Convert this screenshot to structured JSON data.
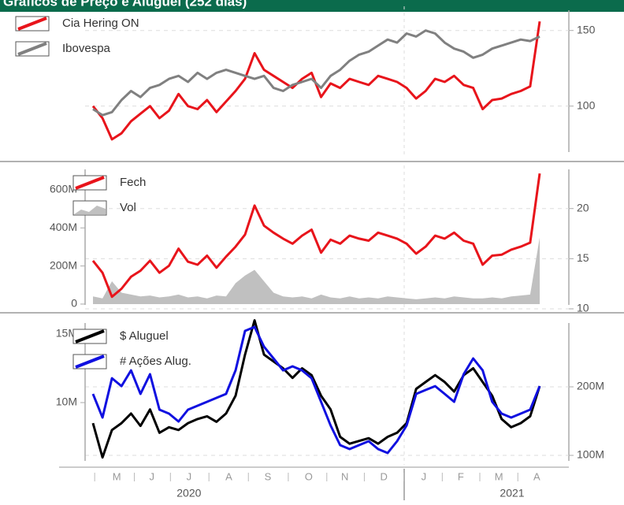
{
  "title": "Gráficos de Preço e Aluguel (252 dias)",
  "chart_data": [
    {
      "type": "line",
      "legend": "top-left",
      "x": [
        0,
        1,
        2,
        3,
        4,
        5,
        6,
        7,
        8,
        9,
        10,
        11,
        12,
        13,
        14,
        15,
        16,
        17,
        18,
        19,
        20,
        21,
        22,
        23,
        24,
        25,
        26,
        27,
        28,
        29,
        30,
        31,
        32,
        33,
        34,
        35,
        36,
        37,
        38,
        39,
        40,
        41,
        42,
        43,
        44,
        45,
        46,
        47
      ],
      "xlim": [
        0,
        47
      ],
      "ylim": [
        67,
        166
      ],
      "yticks": [
        100,
        150
      ],
      "grid": true,
      "series": [
        {
          "name": "Cia Hering ON",
          "color": "#e8141b",
          "axis": "y",
          "values": [
            100,
            92,
            78,
            82,
            90,
            95,
            100,
            92,
            97,
            108,
            100,
            98,
            104,
            96,
            103,
            110,
            118,
            135,
            124,
            120,
            116,
            112,
            118,
            122,
            106,
            115,
            112,
            118,
            116,
            114,
            120,
            118,
            116,
            112,
            105,
            110,
            118,
            116,
            120,
            114,
            112,
            98,
            104,
            105,
            108,
            110,
            113,
            156
          ]
        },
        {
          "name": "Ibovespa",
          "color": "#808080",
          "axis": "y",
          "values": [
            98,
            94,
            96,
            104,
            110,
            106,
            112,
            114,
            118,
            120,
            116,
            122,
            118,
            122,
            124,
            122,
            120,
            118,
            120,
            112,
            110,
            114,
            116,
            118,
            112,
            120,
            124,
            130,
            134,
            136,
            140,
            144,
            142,
            148,
            146,
            150,
            148,
            142,
            138,
            136,
            132,
            134,
            138,
            140,
            142,
            144,
            143,
            146
          ]
        }
      ]
    },
    {
      "type": "line",
      "legend": "top-left",
      "x": [
        0,
        1,
        2,
        3,
        4,
        5,
        6,
        7,
        8,
        9,
        10,
        11,
        12,
        13,
        14,
        15,
        16,
        17,
        18,
        19,
        20,
        21,
        22,
        23,
        24,
        25,
        26,
        27,
        28,
        29,
        30,
        31,
        32,
        33,
        34,
        35,
        36,
        37,
        38,
        39,
        40,
        41,
        42,
        43,
        44,
        45,
        46,
        47
      ],
      "xlim": [
        0,
        47
      ],
      "ylim": [
        -25000000,
        728000000
      ],
      "yticks": [
        0,
        {
          "value": 200000000,
          "label": "200M"
        },
        {
          "value": 400000000,
          "label": "400M"
        },
        {
          "value": 600000000,
          "label": "600M"
        }
      ],
      "y2lim": [
        10,
        24.3
      ],
      "y2ticks": [
        10,
        15,
        20
      ],
      "grid": true,
      "series": [
        {
          "name": "Fech",
          "color": "#e8141b",
          "axis": "y2",
          "values": [
            14.8,
            13.6,
            11.2,
            12.0,
            13.2,
            13.8,
            14.8,
            13.6,
            14.3,
            16.0,
            14.7,
            14.4,
            15.3,
            14.1,
            15.2,
            16.2,
            17.4,
            20.3,
            18.3,
            17.6,
            17.0,
            16.5,
            17.3,
            17.9,
            15.6,
            16.9,
            16.5,
            17.3,
            17.0,
            16.8,
            17.6,
            17.3,
            17.0,
            16.5,
            15.5,
            16.2,
            17.3,
            17.0,
            17.6,
            16.8,
            16.5,
            14.4,
            15.3,
            15.4,
            15.9,
            16.2,
            16.6,
            23.5
          ]
        },
        {
          "name": "Vol",
          "color": "#c0c0c0",
          "axis": "y",
          "style": "area",
          "values": [
            40000000,
            30000000,
            120000000,
            60000000,
            50000000,
            40000000,
            45000000,
            35000000,
            40000000,
            50000000,
            35000000,
            40000000,
            30000000,
            45000000,
            40000000,
            110000000,
            150000000,
            180000000,
            120000000,
            60000000,
            40000000,
            35000000,
            40000000,
            30000000,
            50000000,
            35000000,
            30000000,
            40000000,
            30000000,
            35000000,
            30000000,
            40000000,
            35000000,
            30000000,
            25000000,
            30000000,
            35000000,
            30000000,
            40000000,
            35000000,
            30000000,
            30000000,
            35000000,
            30000000,
            40000000,
            45000000,
            50000000,
            350000000
          ]
        }
      ]
    },
    {
      "type": "line",
      "legend": "top-left",
      "x": [
        0,
        1,
        2,
        3,
        4,
        5,
        6,
        7,
        8,
        9,
        10,
        11,
        12,
        13,
        14,
        15,
        16,
        17,
        18,
        19,
        20,
        21,
        22,
        23,
        24,
        25,
        26,
        27,
        28,
        29,
        30,
        31,
        32,
        33,
        34,
        35,
        36,
        37,
        38,
        39,
        40,
        41,
        42,
        43,
        44,
        45,
        46,
        47
      ],
      "xlim": [
        0,
        47
      ],
      "xticks": [
        {
          "value": 2.5,
          "label": "M"
        },
        {
          "value": 6.2,
          "label": "J"
        },
        {
          "value": 10.1,
          "label": "J"
        },
        {
          "value": 14.3,
          "label": "A"
        },
        {
          "value": 18.4,
          "label": "S"
        },
        {
          "value": 22.7,
          "label": "O"
        },
        {
          "value": 26.5,
          "label": "N"
        },
        {
          "value": 30.6,
          "label": "D"
        },
        {
          "value": 34.8,
          "label": "J"
        },
        {
          "value": 38.7,
          "label": "F"
        },
        {
          "value": 42.7,
          "label": "M"
        },
        {
          "value": 46.7,
          "label": "A"
        }
      ],
      "year_ticks": [
        {
          "value": 10.1,
          "label": "2020"
        },
        {
          "value": 44.1,
          "label": "2021"
        }
      ],
      "ylim": [
        5460000,
        16090000
      ],
      "yticks": [
        {
          "value": 10000000,
          "label": "10M"
        },
        {
          "value": 15000000,
          "label": "15M"
        }
      ],
      "y2lim": [
        86200000,
        298900000
      ],
      "y2ticks": [
        {
          "value": 100000000,
          "label": "100M"
        },
        {
          "value": 200000000,
          "label": "200M"
        }
      ],
      "grid": true,
      "series": [
        {
          "name": "$ Aluguel",
          "color": "#000000",
          "axis": "y",
          "values": [
            8500000,
            6000000,
            8000000,
            8500000,
            9200000,
            8300000,
            9500000,
            7800000,
            8200000,
            8000000,
            8500000,
            8800000,
            9000000,
            8600000,
            9200000,
            10500000,
            13500000,
            16000000,
            13500000,
            13000000,
            12500000,
            11800000,
            12500000,
            12000000,
            10500000,
            9500000,
            7500000,
            7000000,
            7200000,
            7400000,
            7000000,
            7500000,
            7800000,
            8500000,
            11000000,
            11500000,
            12000000,
            11500000,
            10800000,
            12000000,
            12500000,
            11500000,
            10500000,
            8800000,
            8200000,
            8500000,
            9000000,
            11200000
          ]
        },
        {
          "name": "# Ações Alug.",
          "color": "#1010e0",
          "axis": "y2",
          "values": [
            189700000,
            155200000,
            212600000,
            201100000,
            224100000,
            189700000,
            218400000,
            166700000,
            160900000,
            149400000,
            166700000,
            172400000,
            178200000,
            183900000,
            189700000,
            224100000,
            281600000,
            287400000,
            258600000,
            241400000,
            224100000,
            229900000,
            224100000,
            212600000,
            178200000,
            143700000,
            114900000,
            109200000,
            114900000,
            120700000,
            109200000,
            103400000,
            120700000,
            143700000,
            189700000,
            195400000,
            201100000,
            189700000,
            178200000,
            218400000,
            241400000,
            224100000,
            178200000,
            160900000,
            155200000,
            160900000,
            166700000,
            201100000
          ]
        }
      ]
    }
  ]
}
